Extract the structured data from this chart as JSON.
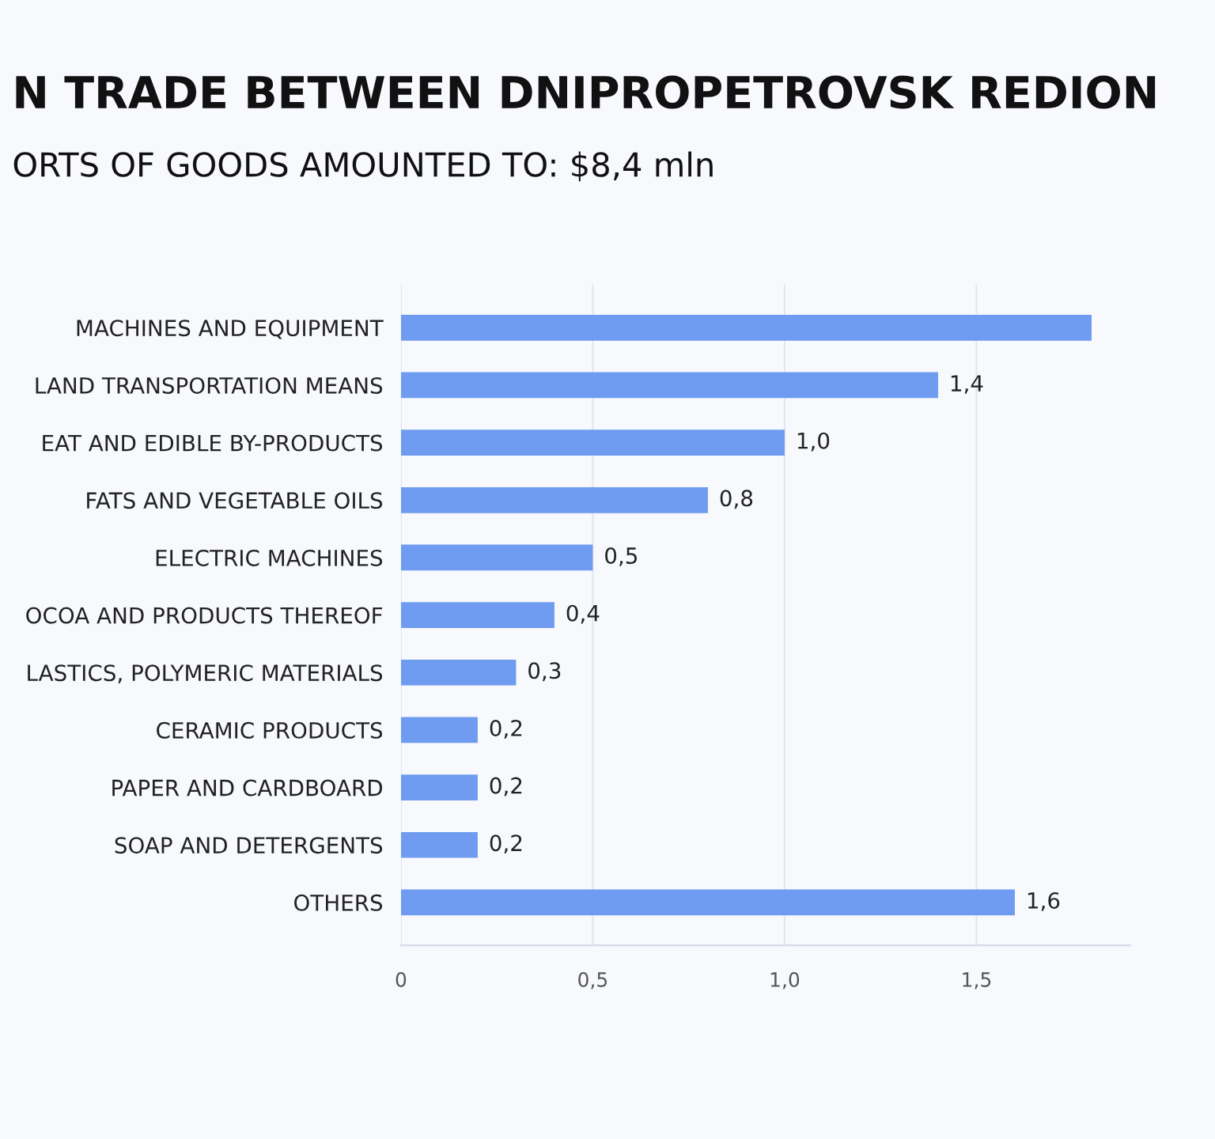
{
  "chart_data": {
    "type": "bar",
    "orientation": "horizontal",
    "title": "N TRADE BETWEEN DNIPROPETROVSK REDION",
    "subtitle": "ORTS OF GOODS AMOUNTED TO: $8,4 mln",
    "categories": [
      "MACHINES AND EQUIPMENT",
      "LAND TRANSPORTATION MEANS",
      "EAT AND EDIBLE BY-PRODUCTS",
      "FATS AND VEGETABLE OILS",
      "ELECTRIC MACHINES",
      "OCOA AND PRODUCTS THEREOF",
      "LASTICS, POLYMERIC MATERIALS",
      "CERAMIC PRODUCTS",
      "PAPER AND CARDBOARD",
      "SOAP AND DETERGENTS",
      "OTHERS"
    ],
    "values": [
      1.8,
      1.4,
      1.0,
      0.8,
      0.5,
      0.4,
      0.3,
      0.2,
      0.2,
      0.2,
      1.6
    ],
    "value_labels": [
      null,
      "1,4",
      "1,0",
      "0,8",
      "0,5",
      "0,4",
      "0,3",
      "0,2",
      "0,2",
      "0,2",
      "1,6"
    ],
    "color": "#6f9cf0",
    "xlim": [
      0,
      1.9
    ],
    "xticks": [
      0,
      {
        "value": 0.5,
        "label": "0,5"
      },
      {
        "value": 1.0,
        "label": "1,0"
      },
      {
        "value": 1.5,
        "label": "1,5"
      }
    ],
    "grid": "x"
  }
}
